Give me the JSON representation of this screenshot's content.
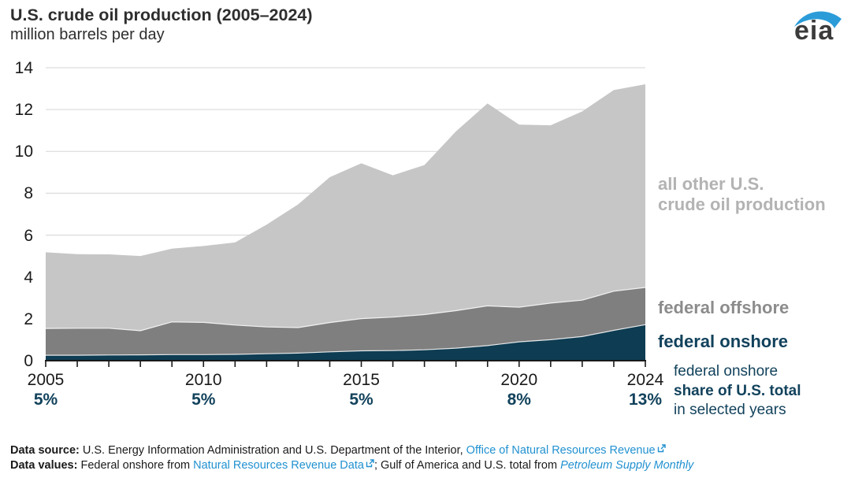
{
  "header": {
    "title": "U.S. crude oil production (2005–2024)",
    "subtitle": "million barrels per day"
  },
  "logo": {
    "text": "eia"
  },
  "chart_data": {
    "type": "area",
    "stacked": true,
    "title": "U.S. crude oil production (2005–2024)",
    "ylabel": "million barrels per day",
    "xlabel": "",
    "ylim": [
      0,
      14
    ],
    "yticks": [
      0,
      2,
      4,
      6,
      8,
      10,
      12,
      14
    ],
    "grid": "horizontal",
    "legend_position": "right-annotations",
    "x": [
      2005,
      2006,
      2007,
      2008,
      2009,
      2010,
      2011,
      2012,
      2013,
      2014,
      2015,
      2016,
      2017,
      2018,
      2019,
      2020,
      2021,
      2022,
      2023,
      2024
    ],
    "series": [
      {
        "id": "federal-onshore",
        "name": "federal onshore",
        "color": "#0e3c52",
        "values": [
          0.26,
          0.26,
          0.27,
          0.28,
          0.29,
          0.29,
          0.3,
          0.33,
          0.36,
          0.42,
          0.47,
          0.48,
          0.52,
          0.6,
          0.72,
          0.9,
          1.0,
          1.15,
          1.45,
          1.72
        ]
      },
      {
        "id": "federal-offshore",
        "name": "federal offshore",
        "color": "#7f7f7f",
        "values": [
          1.28,
          1.29,
          1.28,
          1.15,
          1.56,
          1.54,
          1.4,
          1.28,
          1.22,
          1.4,
          1.54,
          1.6,
          1.68,
          1.79,
          1.9,
          1.65,
          1.75,
          1.74,
          1.87,
          1.78
        ]
      },
      {
        "id": "all-other",
        "name": "all other U.S. crude oil production",
        "color": "#c6c6c6",
        "values": [
          3.64,
          3.54,
          3.53,
          3.57,
          3.5,
          3.65,
          3.95,
          4.89,
          5.89,
          6.95,
          7.42,
          6.78,
          7.15,
          8.57,
          9.67,
          8.73,
          8.5,
          9.02,
          9.61,
          9.71
        ]
      }
    ],
    "us_total": [
      5.18,
      5.09,
      5.08,
      5.0,
      5.35,
      5.48,
      5.65,
      6.5,
      7.47,
      8.77,
      9.43,
      8.86,
      9.35,
      10.96,
      12.29,
      11.28,
      11.25,
      11.91,
      12.93,
      13.21
    ],
    "xticks": [
      {
        "year": 2005,
        "share": "5%"
      },
      {
        "year": 2010,
        "share": "5%"
      },
      {
        "year": 2015,
        "share": "5%"
      },
      {
        "year": 2020,
        "share": "8%"
      },
      {
        "year": 2024,
        "share": "13%"
      }
    ],
    "colors": {
      "grid": "#dedede",
      "axis": "#1a1a1a",
      "boundary": "#ffffff"
    }
  },
  "annotations": {
    "other_line1": "all other U.S.",
    "other_line2": "crude oil production",
    "offshore": "federal offshore",
    "onshore": "federal onshore",
    "share_line1": "federal onshore",
    "share_line2": "share of U.S. total",
    "share_line3": "in selected years"
  },
  "footer": {
    "line1_label": "Data source:",
    "line1_text": "U.S. Energy Information Administration and U.S. Department of the Interior, ",
    "line1_link": "Office of Natural Resources Revenue",
    "line2_label": "Data values:",
    "line2_pre": "Federal onshore from ",
    "line2_link1": "Natural Resources Revenue Data",
    "line2_mid": "; Gulf of America and U.S. total from ",
    "line2_link2": "Petroleum Supply Monthly"
  }
}
